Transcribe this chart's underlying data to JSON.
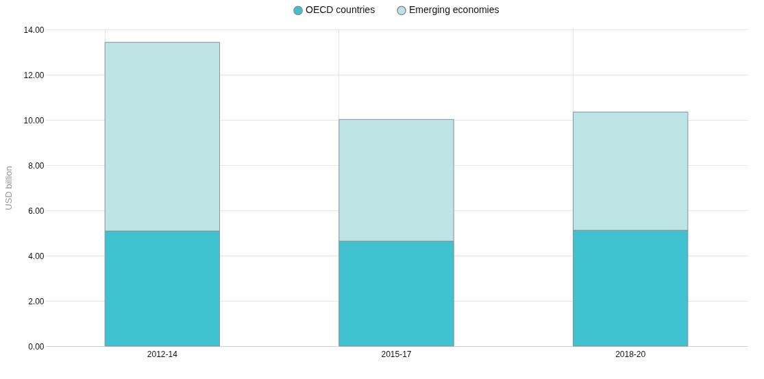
{
  "chart_data": {
    "type": "bar",
    "ylabel": "USD billion",
    "categories": [
      "2012-14",
      "2015-17",
      "2018-20"
    ],
    "stacked": true,
    "series": [
      {
        "name": "OECD countries",
        "color": "#40c1cf",
        "values": [
          5.09,
          4.64,
          5.12
        ]
      },
      {
        "name": "Emerging economies",
        "color": "#bce4e4",
        "values": [
          8.34,
          5.38,
          5.23
        ]
      }
    ],
    "ylim": [
      0,
      14
    ],
    "yticks": [
      {
        "value": 0,
        "label": "0.00"
      },
      {
        "value": 2,
        "label": "2.00"
      },
      {
        "value": 4,
        "label": "4.00"
      },
      {
        "value": 6,
        "label": "6.00"
      },
      {
        "value": 8,
        "label": "8.00"
      },
      {
        "value": 10,
        "label": "10.00"
      },
      {
        "value": 12,
        "label": "12.00"
      },
      {
        "value": 14,
        "label": "14.00"
      }
    ],
    "grid": true,
    "legend": "top"
  }
}
